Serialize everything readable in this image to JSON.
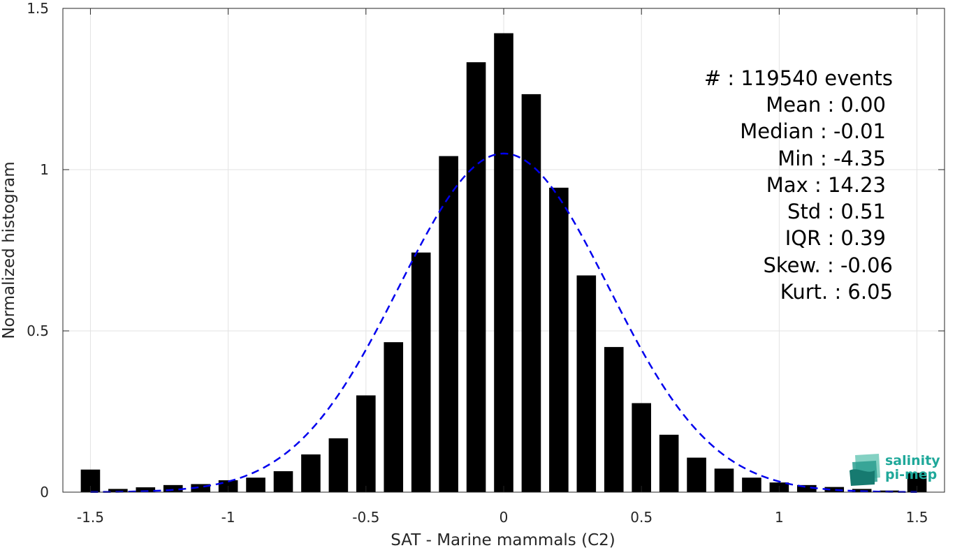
{
  "chart_data": {
    "type": "bar",
    "xlabel": "SAT - Marine mammals (C2)",
    "ylabel": "Normalized histogram",
    "xlim": [
      -1.6,
      1.6
    ],
    "ylim": [
      0,
      1.5
    ],
    "grid": true,
    "xticks": [
      -1.5,
      -1,
      -0.5,
      0,
      0.5,
      1,
      1.5
    ],
    "xtick_labels": [
      "-1.5",
      "-1",
      "-0.5",
      "0",
      "0.5",
      "1",
      "1.5"
    ],
    "yticks": [
      0,
      0.5,
      1,
      1.5
    ],
    "ytick_labels": [
      "0",
      "0.5",
      "1",
      "1.5"
    ],
    "bar_width": 0.07,
    "bar_color": "#000000",
    "bins": [
      -1.5,
      -1.4,
      -1.3,
      -1.2,
      -1.1,
      -1.0,
      -0.9,
      -0.8,
      -0.7,
      -0.6,
      -0.5,
      -0.4,
      -0.3,
      -0.2,
      -0.1,
      0.0,
      0.1,
      0.2,
      0.3,
      0.4,
      0.5,
      0.6,
      0.7,
      0.8,
      0.9,
      1.0,
      1.1,
      1.2,
      1.3,
      1.4,
      1.5
    ],
    "values": [
      0.07,
      0.01,
      0.015,
      0.022,
      0.025,
      0.037,
      0.045,
      0.065,
      0.117,
      0.167,
      0.3,
      0.465,
      0.743,
      1.042,
      1.333,
      1.423,
      1.234,
      0.944,
      0.672,
      0.45,
      0.276,
      0.178,
      0.107,
      0.073,
      0.045,
      0.03,
      0.022,
      0.016,
      0.01,
      0.005,
      0.06
    ],
    "fit": {
      "name": "Gaussian fit",
      "style": "dashed",
      "color": "#0000ee",
      "mean": 0.0,
      "std": 0.38,
      "peak": 1.05
    },
    "stats": [
      {
        "label": "#",
        "value": ": 119540 events"
      },
      {
        "label": "Mean",
        "value": ": 0.00"
      },
      {
        "label": "Median",
        "value": ": -0.01"
      },
      {
        "label": "Min",
        "value": ": -4.35"
      },
      {
        "label": "Max",
        "value": ": 14.23"
      },
      {
        "label": "Std",
        "value": ": 0.51"
      },
      {
        "label": "IQR",
        "value": ": 0.39"
      },
      {
        "label": "Skew.",
        "value": ": -0.06"
      },
      {
        "label": "Kurt.",
        "value": ": 6.05"
      }
    ]
  },
  "logo": {
    "line1": "salinity",
    "line2": "pi-mep",
    "color": "#1fa89a"
  }
}
